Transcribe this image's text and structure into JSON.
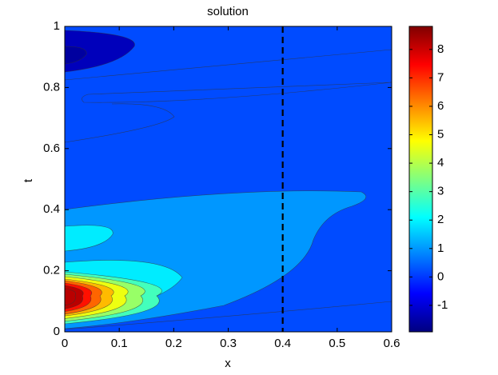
{
  "chart_data": {
    "type": "contour",
    "title": "solution",
    "xlabel": "x",
    "ylabel": "t",
    "xlim": [
      0,
      0.6
    ],
    "ylim": [
      0,
      1
    ],
    "xticks": [
      0,
      0.1,
      0.2,
      0.3,
      0.4,
      0.5,
      0.6
    ],
    "yticks": [
      0,
      0.2,
      0.4,
      0.6,
      0.8,
      1
    ],
    "colormap": "jet",
    "clim": [
      -1.93,
      8.81
    ],
    "cticks": [
      -1,
      0,
      1,
      2,
      3,
      4,
      5,
      6,
      7,
      8
    ],
    "fill_levels": [
      0.2,
      -1.3,
      -1.6,
      1.0,
      1.9,
      1.9,
      2.8,
      3.7,
      4.6,
      5.5,
      6.4,
      7.3,
      8.2
    ],
    "reference_line_x": 0.4
  }
}
